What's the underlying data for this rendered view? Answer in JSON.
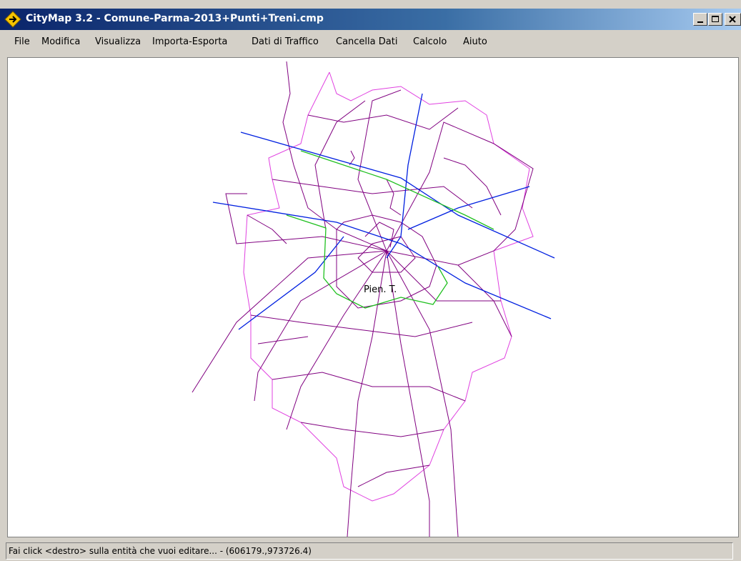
{
  "window": {
    "title": "CityMap 3.2 - Comune-Parma-2013+Punti+Treni.cmp"
  },
  "menu": [
    "File",
    "Modifica",
    "Visualizza",
    "Importa-Esporta",
    "Dati di Traffico",
    "Cancella Dati",
    "Calcolo",
    "Aiuto"
  ],
  "map": {
    "label": "Pien. T."
  },
  "status_bar": {
    "text": "Fai click <destro> sulla entità che vuoi editare... - (606179.,973726.4)"
  }
}
